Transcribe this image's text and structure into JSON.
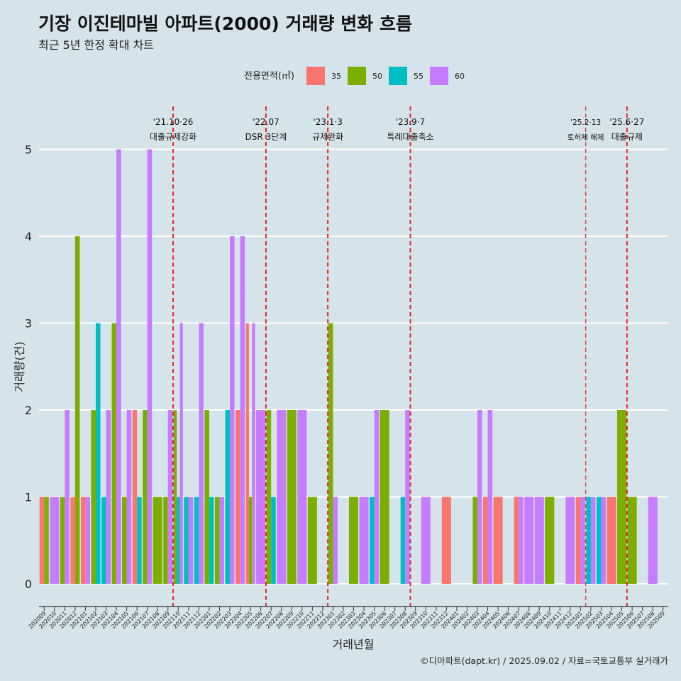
{
  "header": {
    "title": "기장 이진테마빌 아파트(2000) 거래량 변화 흐름",
    "subtitle": "최근 5년 한정 확대 차트"
  },
  "legend": {
    "title": "전용면적(㎡)",
    "items": [
      {
        "label": "35",
        "color": "#F8766D"
      },
      {
        "label": "50",
        "color": "#7CAE00"
      },
      {
        "label": "55",
        "color": "#00BFC4"
      },
      {
        "label": "60",
        "color": "#C77CFF"
      }
    ]
  },
  "caption": "©디아파트(dapt.kr) / 2025.09.02 / 자료=국토교통부 실거래가",
  "colors": {
    "background": "#d5e4eb",
    "gridline": "#ffffff",
    "event_line": "#e8281f"
  },
  "chart_data": {
    "type": "bar",
    "xlabel": "거래년월",
    "ylabel": "거래량(건)",
    "ylim": [
      0,
      5
    ],
    "yticks": [
      0,
      1,
      2,
      3,
      4,
      5
    ],
    "grid": "horizontal",
    "legend_position": "top",
    "months": [
      "202009",
      "202010",
      "202011",
      "202012",
      "202101",
      "202102",
      "202103",
      "202104",
      "202105",
      "202106",
      "202107",
      "202108",
      "202109",
      "202110",
      "202111",
      "202112",
      "202201",
      "202202",
      "202203",
      "202204",
      "202205",
      "202206",
      "202207",
      "202208",
      "202209",
      "202210",
      "202211",
      "202212",
      "202301",
      "202302",
      "202303",
      "202304",
      "202305",
      "202306",
      "202307",
      "202308",
      "202309",
      "202310",
      "202311",
      "202312",
      "202401",
      "202402",
      "202403",
      "202404",
      "202405",
      "202406",
      "202407",
      "202408",
      "202409",
      "202410",
      "202411",
      "202412",
      "202501",
      "202502",
      "202503",
      "202504",
      "202505",
      "202506",
      "202507",
      "202508",
      "202509"
    ],
    "series": [
      {
        "name": "35",
        "color": "#F8766D",
        "values": {
          "202009": 1,
          "202012": 1,
          "202101": 1,
          "202106": 2,
          "202204": 2,
          "202205": 3,
          "202312": 1,
          "202404": 1,
          "202405": 1,
          "202407": 1,
          "202501": 1,
          "202504": 1
        }
      },
      {
        "name": "50",
        "color": "#7CAE00",
        "values": {
          "202009": 1,
          "202011": 1,
          "202012": 4,
          "202102": 2,
          "202104": 3,
          "202105": 1,
          "202107": 2,
          "202108": 1,
          "202109": 1,
          "202110": 2,
          "202201": 2,
          "202202": 1,
          "202205": 1,
          "202207": 2,
          "202209": 2,
          "202211": 1,
          "202301": 3,
          "202303": 1,
          "202306": 2,
          "202403": 1,
          "202410": 1,
          "202505": 2,
          "202506": 1
        }
      },
      {
        "name": "55",
        "color": "#00BFC4",
        "values": {
          "202102": 3,
          "202103": 1,
          "202106": 1,
          "202110": 1,
          "202111": 1,
          "202112": 1,
          "202201": 1,
          "202203": 2,
          "202207": 1,
          "202305": 1,
          "202308": 1,
          "202502": 1,
          "202503": 1
        }
      },
      {
        "name": "60",
        "color": "#C77CFF",
        "values": {
          "202010": 1,
          "202011": 2,
          "202101": 1,
          "202103": 2,
          "202104": 5,
          "202105": 2,
          "202107": 5,
          "202109": 2,
          "202110": 3,
          "202111": 1,
          "202112": 3,
          "202202": 1,
          "202203": 4,
          "202204": 4,
          "202205": 3,
          "202206": 2,
          "202208": 2,
          "202210": 2,
          "202301": 1,
          "202304": 1,
          "202305": 2,
          "202308": 2,
          "202310": 1,
          "202403": 2,
          "202404": 2,
          "202407": 1,
          "202408": 1,
          "202409": 1,
          "202412": 1,
          "202501": 1,
          "202502": 1,
          "202503": 1,
          "202508": 1
        }
      }
    ],
    "annotations": [
      {
        "month": "202110",
        "date": "'21.10·26",
        "label": "대출규제강화"
      },
      {
        "month": "202207",
        "date": "'22.07",
        "label": "DSR 3단계"
      },
      {
        "month": "202301",
        "date": "'23.1·3",
        "label": "규제완화"
      },
      {
        "month": "202309",
        "date": "'23.9·7",
        "label": "특례대출축소"
      },
      {
        "month": "202502",
        "date": "'25.2·13",
        "label": "토허제 해제"
      },
      {
        "month": "202506",
        "date": "'25.6·27",
        "label": "대출규제"
      }
    ]
  }
}
